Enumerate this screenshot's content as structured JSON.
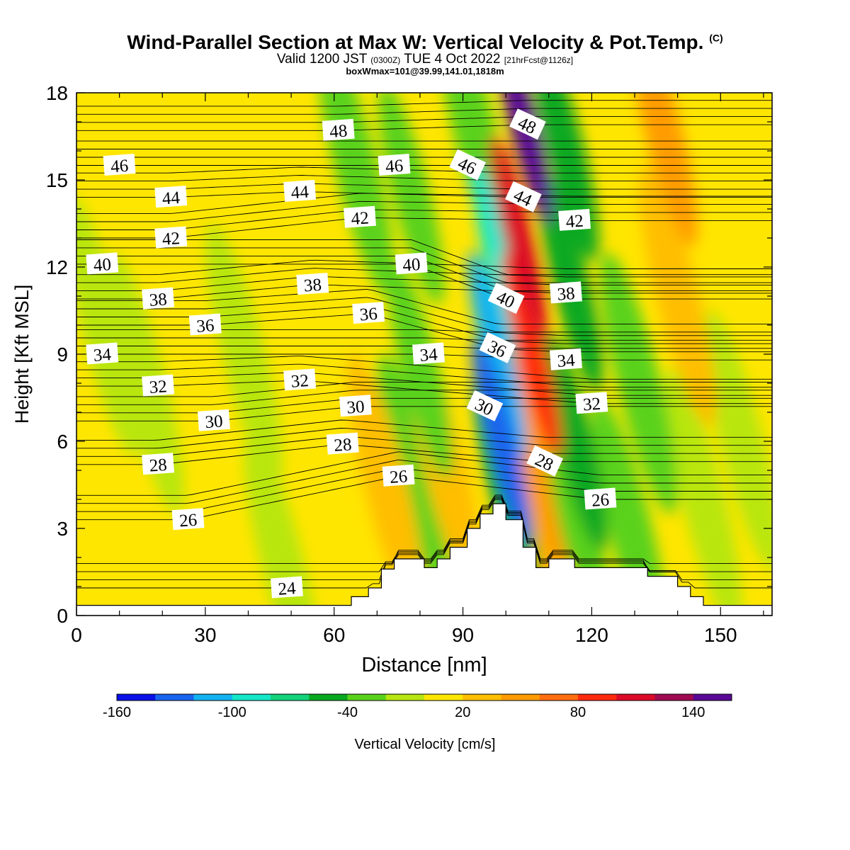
{
  "title": {
    "main": "Wind-Parallel Section at Max W: Vertical Velocity & Pot.Temp.",
    "copyright": "(C)",
    "valid_prefix": "Valid 1200 JST",
    "valid_utc": "(0300Z)",
    "valid_date": "TUE 4 Oct 2022",
    "valid_fcst": "[21hrFcst@1126z]",
    "box": "boxWmax=101@39.99,141.01,1818m"
  },
  "chart_data": {
    "type": "heatmap",
    "xlabel": "Distance [nm]",
    "ylabel": "Height [Kft MSL]",
    "xlim": [
      0,
      162
    ],
    "ylim": [
      0,
      18
    ],
    "x_ticks": [
      0,
      30,
      60,
      90,
      120,
      150
    ],
    "y_ticks": [
      0,
      3,
      6,
      9,
      12,
      15,
      18
    ],
    "colorbar": {
      "label": "Vertical Velocity [cm/s]",
      "ticks": [
        -160,
        -100,
        -40,
        20,
        80,
        140
      ],
      "range": [
        -160,
        160
      ],
      "colors": [
        "#0a10e6",
        "#1a64ee",
        "#12b2f0",
        "#14e6c8",
        "#13d27a",
        "#0aa820",
        "#5ad21c",
        "#b8e610",
        "#ffe600",
        "#ffbe00",
        "#ff9b00",
        "#ff6e10",
        "#ff2a10",
        "#dc0a28",
        "#a00a50",
        "#5a0a96"
      ]
    },
    "terrain": [
      [
        0,
        0.35
      ],
      [
        64,
        0.35
      ],
      [
        64,
        0.65
      ],
      [
        68,
        0.65
      ],
      [
        68,
        0.95
      ],
      [
        71,
        0.95
      ],
      [
        71,
        1.6
      ],
      [
        74,
        1.6
      ],
      [
        74,
        1.95
      ],
      [
        81,
        1.95
      ],
      [
        81,
        1.65
      ],
      [
        84,
        1.65
      ],
      [
        84,
        1.95
      ],
      [
        87,
        1.95
      ],
      [
        87,
        2.35
      ],
      [
        91,
        2.35
      ],
      [
        91,
        3.0
      ],
      [
        94,
        3.0
      ],
      [
        94,
        3.5
      ],
      [
        97,
        3.5
      ],
      [
        97,
        3.85
      ],
      [
        100,
        3.85
      ],
      [
        100,
        3.3
      ],
      [
        104,
        3.3
      ],
      [
        104,
        2.35
      ],
      [
        107,
        2.35
      ],
      [
        107,
        1.65
      ],
      [
        110,
        1.65
      ],
      [
        110,
        1.95
      ],
      [
        116,
        1.95
      ],
      [
        116,
        1.65
      ],
      [
        133,
        1.65
      ],
      [
        133,
        1.35
      ],
      [
        140,
        1.35
      ],
      [
        140,
        1.0
      ],
      [
        143,
        1.0
      ],
      [
        143,
        0.65
      ],
      [
        146,
        0.65
      ],
      [
        146,
        0.35
      ],
      [
        162,
        0.35
      ]
    ],
    "theta_contours": [
      {
        "value": 24,
        "label_x": 49,
        "label_y": 0.95
      },
      {
        "value": 26,
        "label_x": 26,
        "label_y": 3.3
      },
      {
        "value": 26,
        "label_x": 75,
        "label_y": 4.8
      },
      {
        "value": 26,
        "label_x": 122,
        "label_y": 4.0
      },
      {
        "value": 28,
        "label_x": 19,
        "label_y": 5.2
      },
      {
        "value": 28,
        "label_x": 62,
        "label_y": 5.9
      },
      {
        "value": 28,
        "label_x": 109,
        "label_y": 5.3
      },
      {
        "value": 30,
        "label_x": 32,
        "label_y": 6.7
      },
      {
        "value": 30,
        "label_x": 65,
        "label_y": 7.2
      },
      {
        "value": 30,
        "label_x": 95,
        "label_y": 7.2
      },
      {
        "value": 32,
        "label_x": 19,
        "label_y": 7.9
      },
      {
        "value": 32,
        "label_x": 52,
        "label_y": 8.1
      },
      {
        "value": 32,
        "label_x": 120,
        "label_y": 7.3
      },
      {
        "value": 34,
        "label_x": 6,
        "label_y": 9.0
      },
      {
        "value": 34,
        "label_x": 82,
        "label_y": 9.0
      },
      {
        "value": 34,
        "label_x": 114,
        "label_y": 8.8
      },
      {
        "value": 36,
        "label_x": 30,
        "label_y": 10.0
      },
      {
        "value": 36,
        "label_x": 68,
        "label_y": 10.4
      },
      {
        "value": 36,
        "label_x": 98,
        "label_y": 9.2
      },
      {
        "value": 38,
        "label_x": 19,
        "label_y": 10.9
      },
      {
        "value": 38,
        "label_x": 55,
        "label_y": 11.4
      },
      {
        "value": 38,
        "label_x": 114,
        "label_y": 11.1
      },
      {
        "value": 40,
        "label_x": 6,
        "label_y": 12.1
      },
      {
        "value": 40,
        "label_x": 78,
        "label_y": 12.1
      },
      {
        "value": 40,
        "label_x": 100,
        "label_y": 10.9
      },
      {
        "value": 42,
        "label_x": 22,
        "label_y": 13.0
      },
      {
        "value": 42,
        "label_x": 66,
        "label_y": 13.7
      },
      {
        "value": 42,
        "label_x": 116,
        "label_y": 13.6
      },
      {
        "value": 44,
        "label_x": 22,
        "label_y": 14.4
      },
      {
        "value": 44,
        "label_x": 52,
        "label_y": 14.6
      },
      {
        "value": 44,
        "label_x": 104,
        "label_y": 14.4
      },
      {
        "value": 46,
        "label_x": 10,
        "label_y": 15.5
      },
      {
        "value": 46,
        "label_x": 74,
        "label_y": 15.5
      },
      {
        "value": 46,
        "label_x": 91,
        "label_y": 15.5
      },
      {
        "value": 48,
        "label_x": 61,
        "label_y": 16.7
      },
      {
        "value": 48,
        "label_x": 105,
        "label_y": 16.9
      }
    ],
    "w_features": [
      {
        "x": 104,
        "y": 17.0,
        "w": 150
      },
      {
        "x": 103,
        "y": 13.0,
        "w": 110
      },
      {
        "x": 106,
        "y": 9.0,
        "w": 90
      },
      {
        "x": 108,
        "y": 5.0,
        "w": 40
      },
      {
        "x": 99,
        "y": 12.0,
        "w": -85
      },
      {
        "x": 98,
        "y": 9.0,
        "w": -110
      },
      {
        "x": 99,
        "y": 6.0,
        "w": -130
      },
      {
        "x": 100,
        "y": 4.5,
        "w": -60
      },
      {
        "x": 93,
        "y": 16.5,
        "w": -30
      },
      {
        "x": 114,
        "y": 16.0,
        "w": -55
      },
      {
        "x": 115,
        "y": 11.5,
        "w": -55
      },
      {
        "x": 116,
        "y": 6.0,
        "w": -60
      },
      {
        "x": 117,
        "y": 3.0,
        "w": -40
      },
      {
        "x": 78,
        "y": 14.5,
        "w": -40
      },
      {
        "x": 80,
        "y": 8.5,
        "w": -40
      },
      {
        "x": 79,
        "y": 4.5,
        "w": -25
      },
      {
        "x": 131,
        "y": 8.0,
        "w": -35
      },
      {
        "x": 129,
        "y": 3.0,
        "w": -25
      },
      {
        "x": 65,
        "y": 15.5,
        "w": -25
      },
      {
        "x": 137,
        "y": 16.5,
        "w": 40
      },
      {
        "x": 140,
        "y": 11.0,
        "w": 30
      },
      {
        "x": 72,
        "y": 4.5,
        "w": 30
      },
      {
        "x": 86,
        "y": 5.0,
        "w": 30
      },
      {
        "x": 108,
        "y": 2.5,
        "w": 35
      },
      {
        "x": 6,
        "y": 10.0,
        "w": -12
      },
      {
        "x": 16,
        "y": 8.0,
        "w": -12
      },
      {
        "x": 39,
        "y": 9.0,
        "w": -10
      },
      {
        "x": 155,
        "y": 6.0,
        "w": -12
      },
      {
        "x": 146,
        "y": 4.0,
        "w": -10
      },
      {
        "x": 48,
        "y": 1.8,
        "w": -8
      }
    ]
  }
}
